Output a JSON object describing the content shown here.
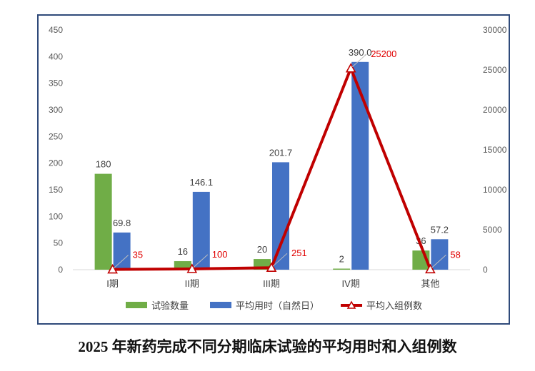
{
  "caption": "2025 年新药完成不同分期临床试验的平均用时和入组例数",
  "chart_data": {
    "type": "bar",
    "categories": [
      "I期",
      "II期",
      "III期",
      "IV期",
      "其他"
    ],
    "series": [
      {
        "name": "试验数量",
        "kind": "bar",
        "axis": "left",
        "color": "#70ad47",
        "values": [
          180,
          16,
          20,
          2,
          36
        ],
        "labels": [
          "180",
          "16",
          "20",
          "2",
          "36"
        ]
      },
      {
        "name": "平均用时（自然日）",
        "kind": "bar",
        "axis": "left",
        "color": "#4472c4",
        "values": [
          69.8,
          146.1,
          201.7,
          390.0,
          57.2
        ],
        "labels": [
          "69.8",
          "146.1",
          "201.7",
          "390.0",
          "57.2"
        ]
      },
      {
        "name": "平均入组例数",
        "kind": "line",
        "axis": "right",
        "color": "#c00000",
        "values": [
          35,
          100,
          251,
          25200,
          58
        ],
        "labels": [
          "35",
          "100",
          "251",
          "25200",
          "58"
        ]
      }
    ],
    "y_left": {
      "min": 0,
      "max": 450,
      "ticks": [
        0,
        50,
        100,
        150,
        200,
        250,
        300,
        350,
        400,
        450
      ]
    },
    "y_right": {
      "min": 0,
      "max": 30000,
      "ticks": [
        0,
        5000,
        10000,
        15000,
        20000,
        25000,
        30000
      ]
    },
    "grid": false,
    "legend_position": "bottom"
  }
}
